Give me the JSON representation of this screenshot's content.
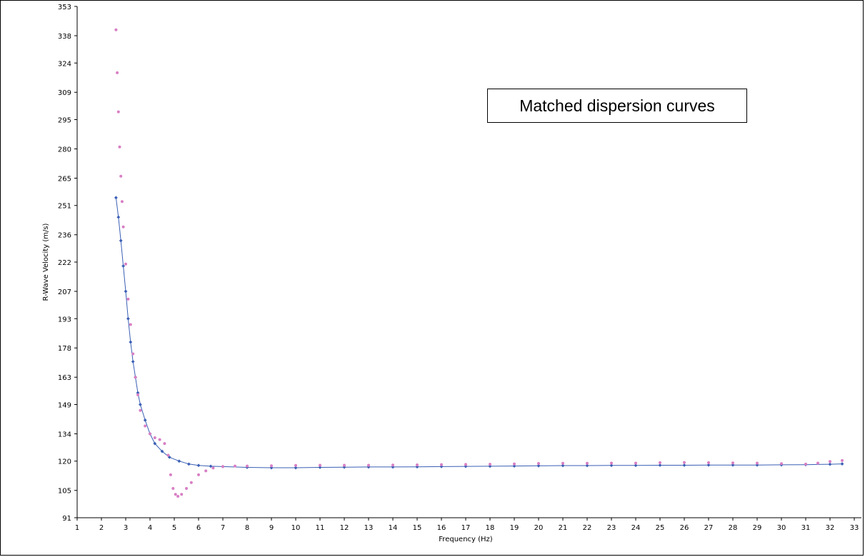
{
  "chart_data": {
    "type": "scatter",
    "title": "",
    "annotation": "Matched dispersion curves",
    "xlabel": "Frequency (Hz)",
    "ylabel": "R-Wave Velocity (m/s)",
    "xlim": [
      1,
      33
    ],
    "ylim": [
      91,
      353
    ],
    "x_ticks": [
      1,
      2,
      3,
      4,
      5,
      6,
      7,
      8,
      9,
      10,
      11,
      12,
      13,
      14,
      15,
      16,
      17,
      18,
      19,
      20,
      21,
      22,
      23,
      24,
      25,
      26,
      27,
      28,
      29,
      30,
      31,
      32,
      33
    ],
    "y_ticks": [
      91,
      105,
      120,
      134,
      149,
      163,
      178,
      193,
      207,
      222,
      236,
      251,
      265,
      280,
      295,
      309,
      324,
      338,
      353
    ],
    "grid": false,
    "legend": "none",
    "series": [
      {
        "color": "#3a5fb5",
        "marker": "diamond",
        "connected": true,
        "x": [
          2.6,
          2.7,
          2.8,
          2.9,
          3.0,
          3.1,
          3.2,
          3.3,
          3.4,
          3.5,
          3.6,
          3.8,
          4.0,
          4.2,
          4.5,
          4.8,
          5.2,
          5.6,
          6.0,
          6.5,
          7.0,
          8.0,
          9.0,
          10.0,
          11.0,
          12.0,
          13.0,
          14.0,
          15.0,
          16.0,
          17.0,
          18.0,
          19.0,
          20.0,
          21.0,
          22.0,
          23.0,
          24.0,
          25.0,
          26.0,
          27.0,
          28.0,
          29.0,
          30.0,
          31.0,
          32.0,
          32.5
        ],
        "y": [
          255,
          245,
          233,
          220,
          207,
          193,
          181,
          171,
          163,
          155,
          149,
          141,
          134,
          129,
          125,
          122,
          120,
          118.5,
          117.8,
          117.4,
          117.2,
          116.8,
          116.6,
          116.6,
          116.8,
          116.9,
          117.0,
          117.0,
          117.1,
          117.2,
          117.3,
          117.4,
          117.5,
          117.6,
          117.7,
          117.7,
          117.8,
          117.8,
          117.9,
          117.9,
          118.0,
          118.0,
          118.0,
          118.1,
          118.2,
          118.4,
          118.6
        ]
      },
      {
        "color": "#d87fc4",
        "marker": "dot",
        "connected": false,
        "x": [
          2.6,
          2.65,
          2.7,
          2.75,
          2.8,
          2.85,
          2.9,
          3.0,
          3.1,
          3.2,
          3.3,
          3.4,
          3.5,
          3.6,
          3.8,
          4.0,
          4.2,
          4.4,
          4.6,
          4.75,
          4.85,
          4.95,
          5.05,
          5.15,
          5.3,
          5.5,
          5.7,
          6.0,
          6.3,
          6.6,
          7.0,
          7.5,
          8.0,
          9.0,
          10.0,
          11.0,
          12.0,
          13.0,
          14.0,
          15.0,
          16.0,
          17.0,
          18.0,
          19.0,
          20.0,
          21.0,
          22.0,
          23.0,
          24.0,
          25.0,
          26.0,
          27.0,
          28.0,
          29.0,
          30.0,
          31.0,
          31.5,
          32.0,
          32.5
        ],
        "y": [
          341,
          319,
          299,
          281,
          266,
          253,
          240,
          221,
          203,
          190,
          175,
          163,
          154,
          146,
          138,
          134,
          132,
          131,
          129,
          123,
          113,
          106,
          103,
          102,
          103,
          106,
          109,
          113,
          115,
          116.5,
          117.2,
          117.5,
          117.5,
          117.6,
          117.8,
          117.9,
          117.9,
          117.9,
          118.0,
          118.1,
          118.2,
          118.3,
          118.4,
          118.6,
          118.8,
          118.9,
          118.9,
          119.0,
          119.0,
          119.2,
          119.3,
          119.2,
          119.1,
          119.0,
          118.7,
          118.5,
          119.0,
          119.8,
          120.3
        ]
      }
    ]
  }
}
